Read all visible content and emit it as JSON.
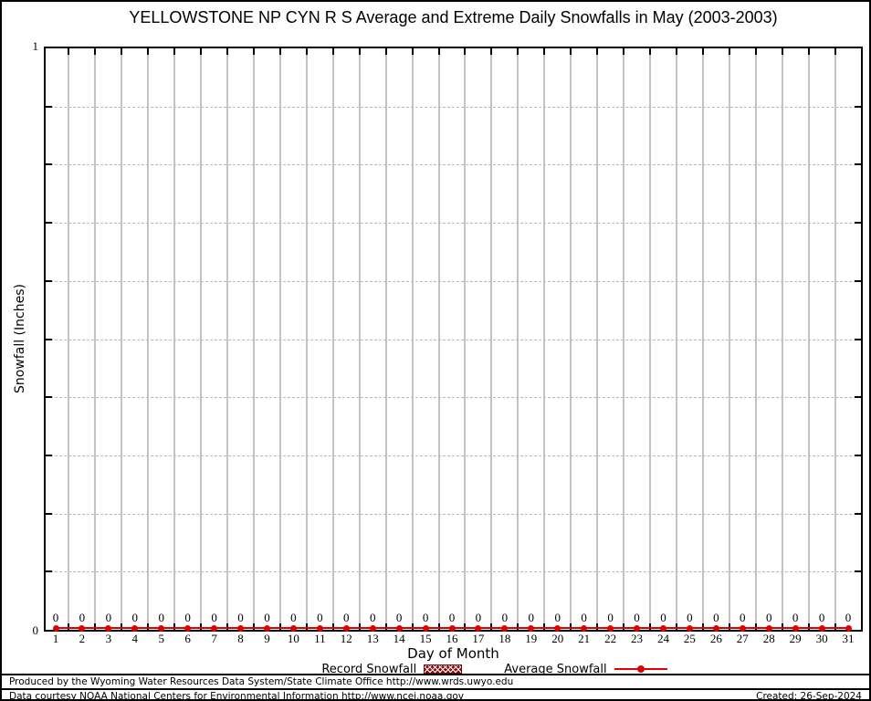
{
  "title": "YELLOWSTONE NP CYN R S Average and Extreme Daily Snowfalls in May (2003-2003)",
  "axes": {
    "x_label": "Day of Month",
    "y_label": "Snowfall (Inches)",
    "y_max_label": "1",
    "y_min_label": "0"
  },
  "chart_data": {
    "type": "line",
    "title": "YELLOWSTONE NP CYN R S Average and Extreme Daily Snowfalls in May (2003-2003)",
    "xlabel": "Day of Month",
    "ylabel": "Snowfall (Inches)",
    "xlim": [
      1,
      31
    ],
    "ylim": [
      0,
      1
    ],
    "ytick_interval": 0.1,
    "ytick_labeled": [
      0,
      1
    ],
    "grid": true,
    "legend_position": "bottom-center",
    "x": [
      1,
      2,
      3,
      4,
      5,
      6,
      7,
      8,
      9,
      10,
      11,
      12,
      13,
      14,
      15,
      16,
      17,
      18,
      19,
      20,
      21,
      22,
      23,
      24,
      25,
      26,
      27,
      28,
      29,
      30,
      31
    ],
    "series": [
      {
        "name": "Record Snowfall",
        "style": "hatched-box",
        "color": "#8a1111",
        "values": [
          0,
          0,
          0,
          0,
          0,
          0,
          0,
          0,
          0,
          0,
          0,
          0,
          0,
          0,
          0,
          0,
          0,
          0,
          0,
          0,
          0,
          0,
          0,
          0,
          0,
          0,
          0,
          0,
          0,
          0,
          0
        ]
      },
      {
        "name": "Average Snowfall",
        "style": "line-point",
        "color": "#e00000",
        "point_labels_shown": true,
        "values": [
          0,
          0,
          0,
          0,
          0,
          0,
          0,
          0,
          0,
          0,
          0,
          0,
          0,
          0,
          0,
          0,
          0,
          0,
          0,
          0,
          0,
          0,
          0,
          0,
          0,
          0,
          0,
          0,
          0,
          0,
          0
        ]
      }
    ]
  },
  "legend": {
    "record_label": "Record Snowfall",
    "average_label": "Average Snowfall"
  },
  "footer": {
    "line1": "Produced by the Wyoming Water Resources Data System/State Climate Office http://www.wrds.uwyo.edu",
    "line2": "Data courtesy NOAA National Centers for Environmental Information http://www.ncei.noaa.gov",
    "created": "Created: 26-Sep-2024"
  },
  "colors": {
    "series_red": "#e00000",
    "record_dark_red": "#8a1111",
    "grid_gray": "#c3c3c3",
    "axis_black": "#000000"
  }
}
